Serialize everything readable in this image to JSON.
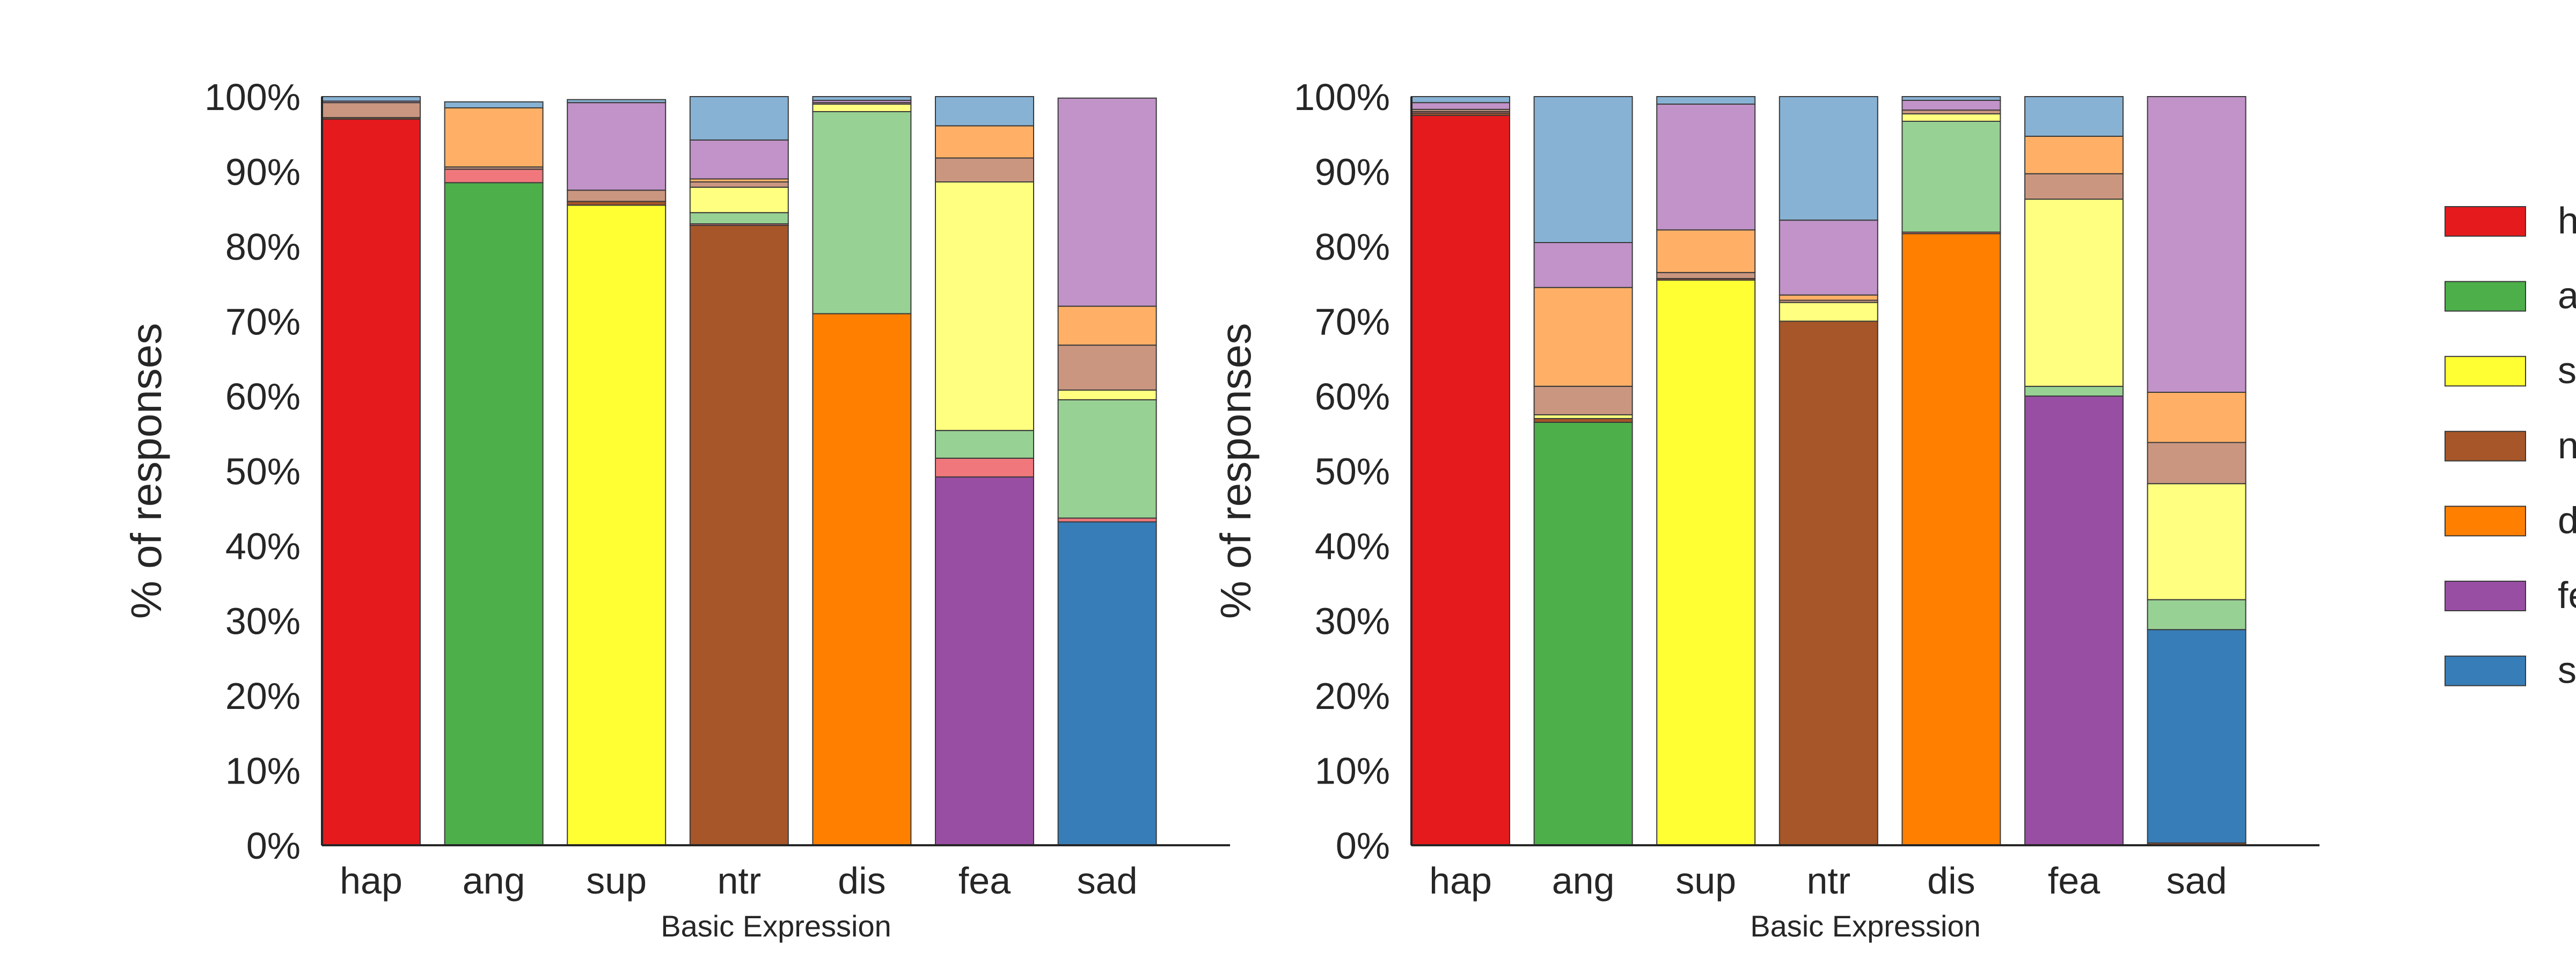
{
  "chart_data": [
    {
      "type": "bar",
      "stacked": true,
      "ylabel": "% of responses",
      "xlabel": "Basic Expression",
      "ylim": [
        0,
        100
      ],
      "ytick_labels": [
        "0%",
        "10%",
        "20%",
        "30%",
        "40%",
        "50%",
        "60%",
        "70%",
        "80%",
        "90%",
        "100%"
      ],
      "categories": [
        "hap",
        "ang",
        "sup",
        "ntr",
        "dis",
        "fea",
        "sad"
      ],
      "series": [
        {
          "color": "#e41a1c",
          "values": [
            97,
            0,
            0,
            0,
            0,
            0,
            0
          ]
        },
        {
          "color": "#4daf4a",
          "values": [
            0,
            88.5,
            0,
            0,
            0,
            0,
            0
          ]
        },
        {
          "color": "#ffff33",
          "values": [
            0,
            0,
            85.5,
            0,
            0,
            0,
            0
          ]
        },
        {
          "color": "#a65628",
          "values": [
            0.2,
            0,
            0.5,
            82.8,
            0,
            0,
            0
          ]
        },
        {
          "color": "#ff7f00",
          "values": [
            0,
            0,
            0,
            0,
            71,
            0,
            0
          ]
        },
        {
          "color": "#984ea3",
          "values": [
            0,
            0,
            0,
            0,
            0,
            49.2,
            0
          ]
        },
        {
          "color": "#377eb8",
          "values": [
            0,
            0,
            0,
            0,
            0,
            0,
            43.2
          ]
        },
        {
          "color": "#f0787c",
          "values": [
            0,
            1.8,
            0,
            0.2,
            0,
            2.5,
            0.5
          ]
        },
        {
          "color": "#98d194",
          "values": [
            0,
            0,
            0,
            1.5,
            27,
            3.7,
            15.8
          ]
        },
        {
          "color": "#ffff80",
          "values": [
            0,
            0,
            0,
            3.4,
            1,
            33.2,
            1.3
          ]
        },
        {
          "color": "#ca9680",
          "values": [
            2,
            0.3,
            1.5,
            0.7,
            0.2,
            3.2,
            6
          ]
        },
        {
          "color": "#ffb066",
          "values": [
            0,
            7.9,
            0,
            0.4,
            0,
            4.3,
            5.2
          ]
        },
        {
          "color": "#c193c8",
          "values": [
            0.2,
            0,
            11.7,
            5.2,
            0.3,
            0,
            27.8
          ]
        },
        {
          "color": "#87b2d4",
          "values": [
            0.6,
            0.8,
            0.4,
            5.8,
            0.5,
            3.9,
            0
          ]
        }
      ]
    },
    {
      "type": "bar",
      "stacked": true,
      "ylabel": "% of responses",
      "xlabel": "Basic Expression",
      "ylim": [
        0,
        100
      ],
      "ytick_labels": [
        "0%",
        "10%",
        "20%",
        "30%",
        "40%",
        "50%",
        "60%",
        "70%",
        "80%",
        "90%",
        "100%"
      ],
      "categories": [
        "hap",
        "ang",
        "sup",
        "ntr",
        "dis",
        "fea",
        "sad"
      ],
      "series": [
        {
          "color": "#e41a1c",
          "values": [
            97.5,
            0,
            0,
            0,
            0,
            0,
            0
          ]
        },
        {
          "color": "#4daf4a",
          "values": [
            0,
            56.5,
            0,
            0,
            0,
            0,
            0
          ]
        },
        {
          "color": "#ffff33",
          "values": [
            0,
            0,
            75.5,
            0,
            0,
            0,
            0
          ]
        },
        {
          "color": "#a65628",
          "values": [
            0.3,
            0.5,
            0.2,
            70,
            0,
            0,
            0.3
          ]
        },
        {
          "color": "#ff7f00",
          "values": [
            0,
            0,
            0,
            0,
            81.7,
            0,
            0
          ]
        },
        {
          "color": "#984ea3",
          "values": [
            0,
            0,
            0,
            0,
            0,
            60,
            0
          ]
        },
        {
          "color": "#377eb8",
          "values": [
            0,
            0,
            0,
            0,
            0,
            0,
            28.5
          ]
        },
        {
          "color": "#f0787c",
          "values": [
            0.2,
            0,
            0,
            0,
            0.2,
            0,
            0
          ]
        },
        {
          "color": "#98d194",
          "values": [
            0,
            0,
            0,
            0,
            14.8,
            1.3,
            4
          ]
        },
        {
          "color": "#ffff80",
          "values": [
            0,
            0.5,
            0,
            2.5,
            1,
            25,
            15.5
          ]
        },
        {
          "color": "#ca9680",
          "values": [
            0.3,
            3.8,
            0.8,
            0.3,
            0.5,
            3.4,
            5.5
          ]
        },
        {
          "color": "#ffb066",
          "values": [
            0,
            13.2,
            5.7,
            0.7,
            0,
            5,
            6.7
          ]
        },
        {
          "color": "#c193c8",
          "values": [
            0.9,
            6,
            16.8,
            10,
            1.3,
            0,
            39.5
          ]
        },
        {
          "color": "#87b2d4",
          "values": [
            0.8,
            19.5,
            1,
            16.5,
            0.5,
            5.3,
            0
          ]
        }
      ]
    }
  ],
  "legend": {
    "placement": "right (cropped at image edge)",
    "entries": [
      {
        "text": "h",
        "color": "#e41a1c"
      },
      {
        "text": "a",
        "color": "#4daf4a"
      },
      {
        "text": "s",
        "color": "#ffff33"
      },
      {
        "text": "n",
        "color": "#a65628"
      },
      {
        "text": "d",
        "color": "#ff7f00"
      },
      {
        "text": "fe",
        "color": "#984ea3"
      },
      {
        "text": "s",
        "color": "#377eb8"
      }
    ]
  }
}
